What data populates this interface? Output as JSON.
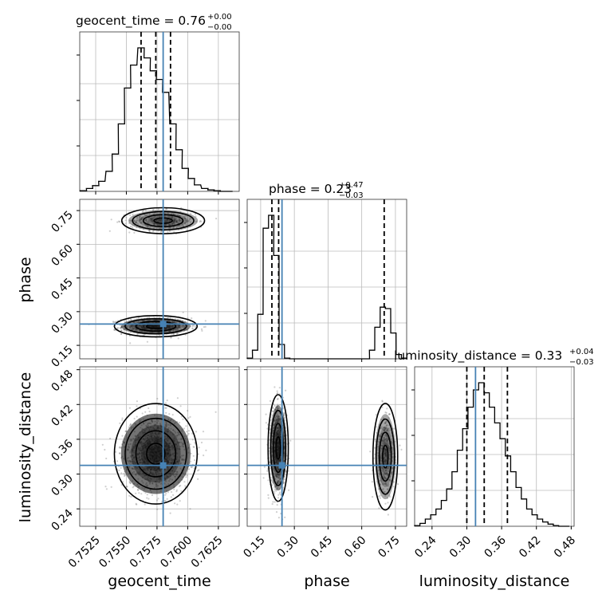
{
  "chart_data": {
    "type": "corner",
    "parameters": [
      "geocent_time",
      "phase",
      "luminosity_distance"
    ],
    "truth": {
      "geocent_time": 0.758,
      "phase": 0.245,
      "luminosity_distance": 0.315
    },
    "truth_color": "#4682b4",
    "grid": true,
    "titles": [
      {
        "param": "geocent_time",
        "label": "geocent_time = 0.76",
        "plus": "+0.00",
        "minus": "−0.00"
      },
      {
        "param": "phase",
        "label": "phase = 0.23",
        "plus": "+0.47",
        "minus": "−0.03"
      },
      {
        "param": "luminosity_distance",
        "label": "luminosity_distance = 0.33",
        "plus": "+0.04",
        "minus": "−0.03"
      }
    ],
    "axes": {
      "geocent_time": {
        "range": [
          0.7512,
          0.7642
        ],
        "ticks": [
          0.7525,
          0.755,
          0.7575,
          0.76,
          0.7625
        ],
        "tick_labels": [
          "0.7525",
          "0.7550",
          "0.7575",
          "0.7600",
          "0.7625"
        ]
      },
      "phase": {
        "range": [
          0.09,
          0.8
        ],
        "ticks": [
          0.15,
          0.3,
          0.45,
          0.6,
          0.75
        ],
        "tick_labels": [
          "0.15",
          "0.30",
          "0.45",
          "0.60",
          "0.75"
        ]
      },
      "luminosity_distance": {
        "range": [
          0.21,
          0.485
        ],
        "ticks": [
          0.24,
          0.3,
          0.36,
          0.42,
          0.48
        ],
        "tick_labels": [
          "0.24",
          "0.30",
          "0.36",
          "0.42",
          "0.48"
        ]
      }
    },
    "histograms": [
      {
        "param": "geocent_time",
        "bin_width": 0.00052,
        "bin_centers": [
          0.7515,
          0.752,
          0.7525,
          0.753,
          0.7536,
          0.7541,
          0.7546,
          0.7551,
          0.7556,
          0.7562,
          0.7567,
          0.7572,
          0.7577,
          0.7582,
          0.7588,
          0.7593,
          0.7598,
          0.7603,
          0.7608,
          0.7614,
          0.7619,
          0.7624,
          0.7629,
          0.7634
        ],
        "values": [
          0.005,
          0.02,
          0.04,
          0.07,
          0.14,
          0.26,
          0.47,
          0.72,
          0.88,
          1.0,
          0.93,
          0.84,
          0.78,
          0.69,
          0.47,
          0.29,
          0.16,
          0.09,
          0.045,
          0.02,
          0.01,
          0.005,
          0,
          0
        ],
        "quantiles": [
          0.7562,
          0.7574,
          0.7586
        ]
      },
      {
        "param": "phase",
        "bin_width": 0.0237,
        "bin_centers": [
          0.102,
          0.125,
          0.149,
          0.173,
          0.197,
          0.22,
          0.244,
          0.268,
          0.291,
          0.315,
          0.339,
          0.362,
          0.386,
          0.41,
          0.433,
          0.457,
          0.481,
          0.504,
          0.528,
          0.552,
          0.575,
          0.599,
          0.623,
          0.646,
          0.67,
          0.694,
          0.717,
          0.741,
          0.765,
          0.788
        ],
        "values": [
          0.005,
          0.06,
          0.31,
          0.91,
          1.0,
          0.72,
          0.1,
          0.005,
          0,
          0,
          0,
          0,
          0,
          0,
          0,
          0,
          0,
          0,
          0,
          0,
          0,
          0,
          0,
          0.06,
          0.22,
          0.36,
          0.35,
          0.18,
          0.03,
          0.005
        ],
        "quantiles": [
          0.2,
          0.23,
          0.7
        ]
      },
      {
        "param": "luminosity_distance",
        "bin_width": 0.0092,
        "bin_centers": [
          0.2146,
          0.2238,
          0.233,
          0.2422,
          0.2514,
          0.2606,
          0.2698,
          0.279,
          0.2882,
          0.2974,
          0.3066,
          0.3158,
          0.325,
          0.3342,
          0.3434,
          0.3526,
          0.3618,
          0.371,
          0.3802,
          0.3894,
          0.3986,
          0.4078,
          0.417,
          0.4262,
          0.4354,
          0.4446,
          0.4538,
          0.463,
          0.4722
        ],
        "values": [
          0.005,
          0.02,
          0.05,
          0.08,
          0.12,
          0.18,
          0.26,
          0.38,
          0.53,
          0.68,
          0.83,
          0.95,
          1.0,
          0.93,
          0.83,
          0.72,
          0.61,
          0.49,
          0.38,
          0.27,
          0.19,
          0.12,
          0.08,
          0.05,
          0.03,
          0.015,
          0.005,
          0,
          0
        ],
        "quantiles": [
          0.3,
          0.33,
          0.37
        ]
      }
    ],
    "scatter_2d": [
      {
        "x_param": "geocent_time",
        "y_param": "phase",
        "clusters": [
          {
            "center": [
              0.7574,
              0.235
            ],
            "sd": [
              0.00135,
              0.018
            ],
            "weight": 0.68
          },
          {
            "center": [
              0.758,
              0.705
            ],
            "sd": [
              0.00135,
              0.022
            ],
            "weight": 0.32
          }
        ]
      },
      {
        "x_param": "geocent_time",
        "y_param": "luminosity_distance",
        "clusters": [
          {
            "center": [
              0.7574,
              0.335
            ],
            "sd": [
              0.00135,
              0.033
            ],
            "weight": 1.0
          }
        ]
      },
      {
        "x_param": "phase",
        "y_param": "luminosity_distance",
        "clusters": [
          {
            "center": [
              0.228,
              0.345
            ],
            "sd": [
              0.018,
              0.035
            ],
            "weight": 0.68
          },
          {
            "center": [
              0.705,
              0.33
            ],
            "sd": [
              0.022,
              0.035
            ],
            "weight": 0.32
          }
        ]
      }
    ]
  }
}
